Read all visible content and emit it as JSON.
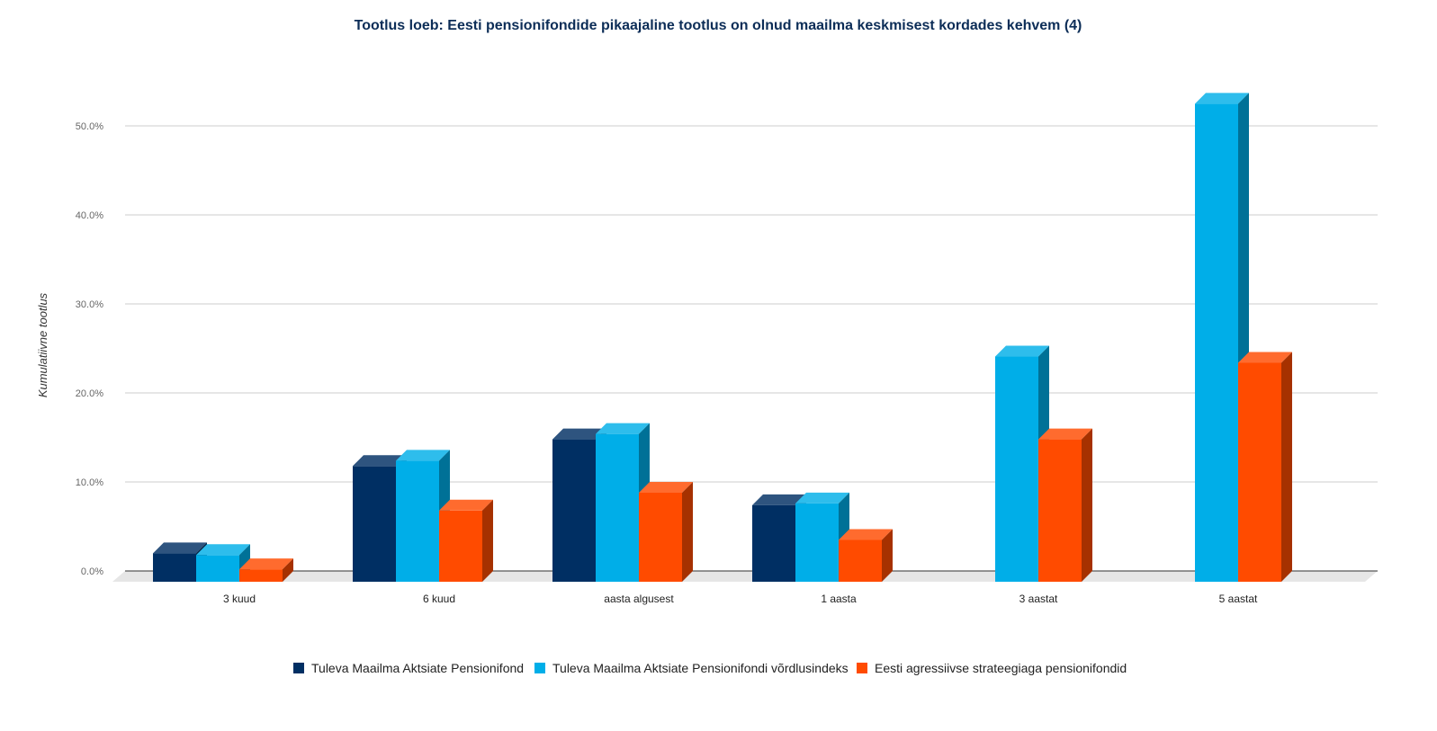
{
  "chart_data": {
    "type": "bar",
    "title": "Tootlus loeb: Eesti pensionifondide pikaajaline tootlus on olnud maailma keskmisest kordades kehvem (4)",
    "xlabel": "",
    "ylabel": "Kumulatiivne tootlus",
    "ylim": [
      0,
      55
    ],
    "y_ticks": [
      0,
      10,
      20,
      30,
      40,
      50
    ],
    "y_tick_labels": [
      "0.0%",
      "10.0%",
      "20.0%",
      "30.0%",
      "40.0%",
      "50.0%"
    ],
    "grid": true,
    "legend_position": "bottom",
    "style": "3d",
    "categories": [
      "3 kuud",
      "6 kuud",
      "aasta algusest",
      "1 aasta",
      "3 aastat",
      "5 aastat"
    ],
    "series": [
      {
        "name": "Tuleva Maailma Aktsiate Pensionifond",
        "color": "#002f63",
        "values": [
          3.2,
          13.0,
          16.0,
          8.6,
          null,
          null
        ]
      },
      {
        "name": "Tuleva Maailma Aktsiate Pensionifondi võrdlusindeks",
        "color": "#00aee8",
        "values": [
          3.0,
          13.6,
          16.6,
          8.8,
          25.3,
          53.7
        ]
      },
      {
        "name": "Eesti agressiivse strateegiaga pensionifondid",
        "color": "#ff4b00",
        "values": [
          1.4,
          8.0,
          10.0,
          4.7,
          16.0,
          24.6
        ]
      }
    ]
  }
}
